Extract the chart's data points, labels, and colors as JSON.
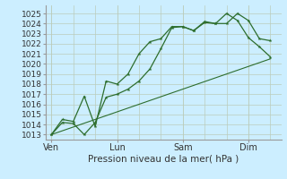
{
  "background_color": "#cceeff",
  "grid_color": "#bbccbb",
  "line_color": "#2d6e2d",
  "xlabel": "Pression niveau de la mer( hPa )",
  "ylim": [
    1012.5,
    1025.8
  ],
  "yticks": [
    1013,
    1014,
    1015,
    1016,
    1017,
    1018,
    1019,
    1020,
    1021,
    1022,
    1023,
    1024,
    1025
  ],
  "xtick_labels": [
    "Ven",
    "Lun",
    "Sam",
    "Dim"
  ],
  "xtick_positions": [
    0,
    24,
    48,
    72
  ],
  "xlim": [
    -2,
    84
  ],
  "line1_x": [
    0,
    4,
    8,
    12,
    16,
    20,
    24,
    28,
    32,
    36,
    40,
    44,
    48,
    52,
    56,
    60,
    64,
    68,
    72,
    76,
    80
  ],
  "line1_y": [
    1013.0,
    1014.2,
    1014.1,
    1013.0,
    1014.2,
    1016.7,
    1017.0,
    1017.5,
    1018.3,
    1019.5,
    1021.5,
    1023.6,
    1023.7,
    1023.3,
    1024.1,
    1024.0,
    1024.0,
    1025.0,
    1024.3,
    1022.5,
    1022.3
  ],
  "line2_x": [
    0,
    4,
    8,
    12,
    16,
    20,
    24,
    28,
    32,
    36,
    40,
    44,
    48,
    52,
    56,
    60,
    64,
    68,
    72,
    76,
    80
  ],
  "line2_y": [
    1013.0,
    1014.5,
    1014.3,
    1016.8,
    1013.8,
    1018.3,
    1018.0,
    1019.0,
    1021.0,
    1022.2,
    1022.5,
    1023.7,
    1023.7,
    1023.3,
    1024.2,
    1024.0,
    1025.0,
    1024.3,
    1022.6,
    1021.7,
    1020.7
  ],
  "line3_x": [
    0,
    80
  ],
  "line3_y": [
    1013.0,
    1020.5
  ],
  "xlabel_fontsize": 7.5,
  "tick_fontsize": 6.5
}
